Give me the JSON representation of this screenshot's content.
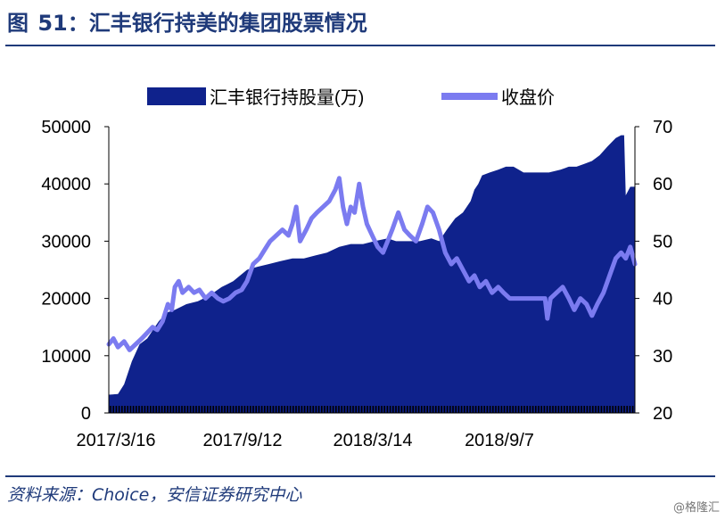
{
  "figure": {
    "label": "图",
    "number": "51",
    "separator": "：",
    "title": "汇丰银行持美的集团股票情况",
    "source": "资料来源：Choice，安信证券研究中心",
    "watermark": "@格隆汇"
  },
  "colors": {
    "title": "#1f3a7a",
    "area": "#0f228c",
    "line": "#7b7bf0",
    "axis": "#000000"
  },
  "chart_data": {
    "type": "area+line",
    "legend_position": "top",
    "grid": false,
    "x_tick_labels": [
      "2017/3/16",
      "2017/9/12",
      "2018/3/14",
      "2018/9/7"
    ],
    "x_range": [
      "2017-03-16",
      "2019-01-30"
    ],
    "y_left": {
      "min": 0,
      "max": 50000,
      "ticks": [
        0,
        10000,
        20000,
        30000,
        40000,
        50000
      ]
    },
    "y_right": {
      "min": 20,
      "max": 70,
      "ticks": [
        20,
        30,
        40,
        50,
        60,
        70
      ]
    },
    "series": [
      {
        "name": "汇丰银行持股量(万)",
        "kind": "area",
        "axis": "left",
        "points": [
          [
            "2017-03-16",
            3200
          ],
          [
            "2017-03-28",
            3300
          ],
          [
            "2017-04-05",
            5000
          ],
          [
            "2017-04-15",
            9000
          ],
          [
            "2017-04-25",
            12000
          ],
          [
            "2017-05-05",
            13000
          ],
          [
            "2017-05-20",
            16000
          ],
          [
            "2017-05-30",
            17500
          ],
          [
            "2017-06-10",
            18000
          ],
          [
            "2017-06-25",
            19000
          ],
          [
            "2017-07-10",
            19500
          ],
          [
            "2017-07-25",
            20500
          ],
          [
            "2017-08-10",
            22000
          ],
          [
            "2017-08-25",
            23000
          ],
          [
            "2017-09-12",
            25000
          ],
          [
            "2017-09-25",
            25500
          ],
          [
            "2017-10-10",
            26000
          ],
          [
            "2017-10-25",
            26500
          ],
          [
            "2017-11-10",
            27000
          ],
          [
            "2017-11-25",
            27000
          ],
          [
            "2017-12-10",
            27500
          ],
          [
            "2017-12-25",
            28000
          ],
          [
            "2018-01-10",
            29000
          ],
          [
            "2018-01-25",
            29500
          ],
          [
            "2018-02-10",
            29500
          ],
          [
            "2018-02-25",
            30000
          ],
          [
            "2018-03-14",
            30500
          ],
          [
            "2018-03-25",
            30000
          ],
          [
            "2018-04-10",
            30000
          ],
          [
            "2018-04-25",
            30000
          ],
          [
            "2018-05-10",
            30500
          ],
          [
            "2018-05-20",
            30000
          ],
          [
            "2018-05-30",
            32000
          ],
          [
            "2018-06-10",
            34000
          ],
          [
            "2018-06-20",
            35000
          ],
          [
            "2018-06-30",
            37000
          ],
          [
            "2018-07-05",
            39000
          ],
          [
            "2018-07-10",
            40000
          ],
          [
            "2018-07-15",
            41500
          ],
          [
            "2018-07-25",
            42000
          ],
          [
            "2018-08-05",
            42500
          ],
          [
            "2018-08-15",
            43000
          ],
          [
            "2018-08-25",
            43000
          ],
          [
            "2018-09-07",
            42000
          ],
          [
            "2018-09-25",
            42000
          ],
          [
            "2018-10-10",
            42000
          ],
          [
            "2018-10-25",
            42500
          ],
          [
            "2018-11-05",
            43000
          ],
          [
            "2018-11-15",
            43000
          ],
          [
            "2018-11-25",
            43500
          ],
          [
            "2018-12-05",
            44000
          ],
          [
            "2018-12-15",
            45000
          ],
          [
            "2018-12-25",
            46500
          ],
          [
            "2019-01-05",
            48000
          ],
          [
            "2019-01-12",
            48500
          ],
          [
            "2019-01-16",
            48500
          ],
          [
            "2019-01-18",
            38000
          ],
          [
            "2019-01-24",
            39500
          ],
          [
            "2019-01-30",
            39500
          ]
        ]
      },
      {
        "name": "收盘价",
        "kind": "line",
        "axis": "right",
        "points": [
          [
            "2017-03-16",
            32
          ],
          [
            "2017-03-22",
            33
          ],
          [
            "2017-03-28",
            31.5
          ],
          [
            "2017-04-05",
            32.5
          ],
          [
            "2017-04-12",
            31
          ],
          [
            "2017-04-20",
            32
          ],
          [
            "2017-04-28",
            33
          ],
          [
            "2017-05-05",
            34
          ],
          [
            "2017-05-12",
            35
          ],
          [
            "2017-05-18",
            34.5
          ],
          [
            "2017-05-25",
            36
          ],
          [
            "2017-06-01",
            39
          ],
          [
            "2017-06-06",
            38
          ],
          [
            "2017-06-10",
            42
          ],
          [
            "2017-06-15",
            43
          ],
          [
            "2017-06-20",
            41
          ],
          [
            "2017-06-28",
            42
          ],
          [
            "2017-07-05",
            41
          ],
          [
            "2017-07-12",
            41.5
          ],
          [
            "2017-07-20",
            40
          ],
          [
            "2017-07-28",
            41
          ],
          [
            "2017-08-05",
            40
          ],
          [
            "2017-08-12",
            39.5
          ],
          [
            "2017-08-20",
            40
          ],
          [
            "2017-08-28",
            41
          ],
          [
            "2017-09-05",
            41.5
          ],
          [
            "2017-09-12",
            43
          ],
          [
            "2017-09-20",
            46
          ],
          [
            "2017-09-28",
            47
          ],
          [
            "2017-10-05",
            48.5
          ],
          [
            "2017-10-12",
            50
          ],
          [
            "2017-10-20",
            51
          ],
          [
            "2017-10-28",
            52
          ],
          [
            "2017-11-05",
            51
          ],
          [
            "2017-11-10",
            53
          ],
          [
            "2017-11-15",
            56
          ],
          [
            "2017-11-20",
            50
          ],
          [
            "2017-11-28",
            52
          ],
          [
            "2017-12-05",
            54
          ],
          [
            "2017-12-12",
            55
          ],
          [
            "2017-12-20",
            56
          ],
          [
            "2017-12-28",
            57
          ],
          [
            "2018-01-05",
            59
          ],
          [
            "2018-01-10",
            61
          ],
          [
            "2018-01-15",
            56
          ],
          [
            "2018-01-20",
            53
          ],
          [
            "2018-01-25",
            56
          ],
          [
            "2018-01-30",
            55
          ],
          [
            "2018-02-05",
            60
          ],
          [
            "2018-02-10",
            56
          ],
          [
            "2018-02-15",
            53
          ],
          [
            "2018-02-22",
            51
          ],
          [
            "2018-03-01",
            49
          ],
          [
            "2018-03-08",
            48
          ],
          [
            "2018-03-14",
            50
          ],
          [
            "2018-03-20",
            52
          ],
          [
            "2018-03-28",
            55
          ],
          [
            "2018-04-05",
            52
          ],
          [
            "2018-04-12",
            51
          ],
          [
            "2018-04-20",
            50
          ],
          [
            "2018-04-28",
            53
          ],
          [
            "2018-05-05",
            56
          ],
          [
            "2018-05-12",
            55
          ],
          [
            "2018-05-20",
            52
          ],
          [
            "2018-05-28",
            48
          ],
          [
            "2018-06-05",
            46
          ],
          [
            "2018-06-12",
            47
          ],
          [
            "2018-06-20",
            45
          ],
          [
            "2018-06-28",
            43
          ],
          [
            "2018-07-05",
            44
          ],
          [
            "2018-07-12",
            42
          ],
          [
            "2018-07-20",
            43
          ],
          [
            "2018-07-28",
            41
          ],
          [
            "2018-08-05",
            42
          ],
          [
            "2018-08-12",
            41
          ],
          [
            "2018-08-20",
            40
          ],
          [
            "2018-09-07",
            40
          ],
          [
            "2018-09-25",
            40
          ],
          [
            "2018-10-05",
            40
          ],
          [
            "2018-10-08",
            36.5
          ],
          [
            "2018-10-12",
            40
          ],
          [
            "2018-10-20",
            41
          ],
          [
            "2018-10-28",
            42
          ],
          [
            "2018-11-05",
            40
          ],
          [
            "2018-11-12",
            38
          ],
          [
            "2018-11-20",
            40
          ],
          [
            "2018-11-28",
            39
          ],
          [
            "2018-12-05",
            37
          ],
          [
            "2018-12-12",
            39
          ],
          [
            "2018-12-20",
            41
          ],
          [
            "2018-12-28",
            44
          ],
          [
            "2019-01-05",
            47
          ],
          [
            "2019-01-12",
            48
          ],
          [
            "2019-01-18",
            47
          ],
          [
            "2019-01-24",
            49
          ],
          [
            "2019-01-30",
            46
          ]
        ]
      }
    ]
  }
}
